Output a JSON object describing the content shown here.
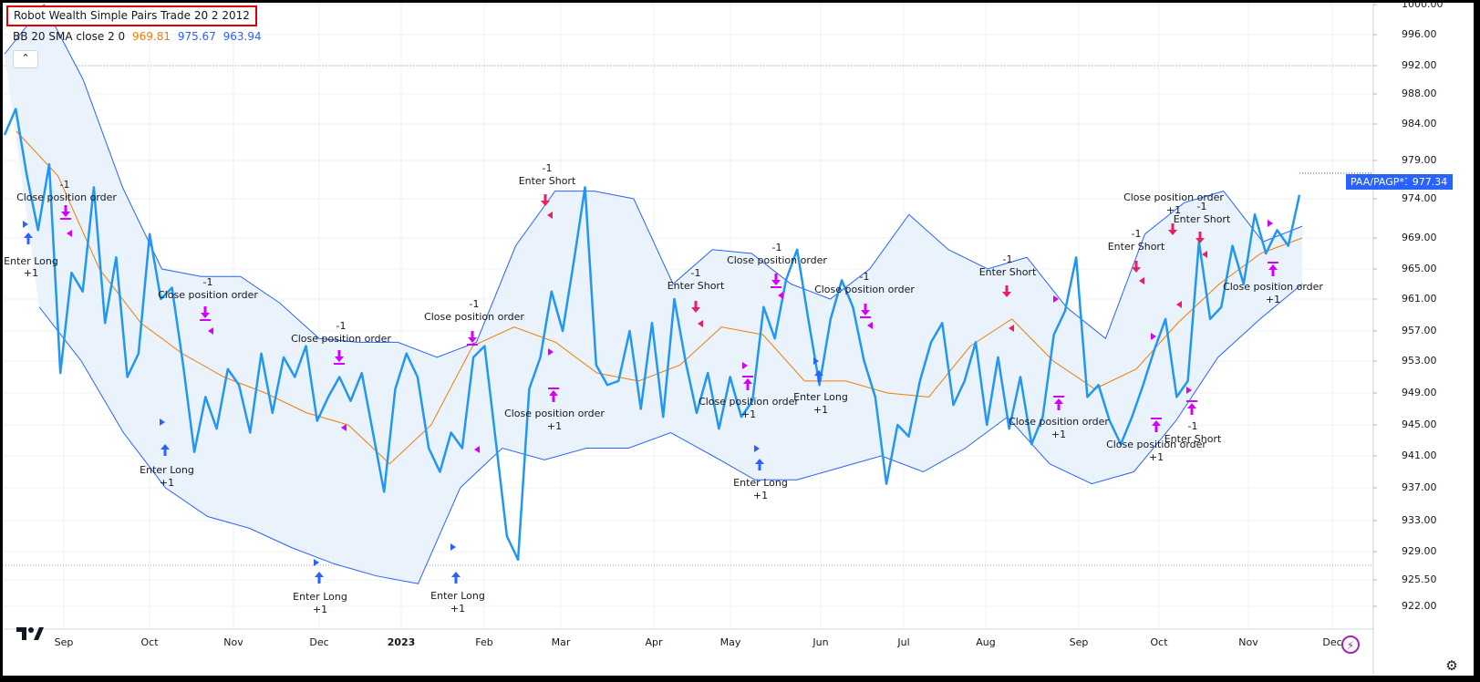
{
  "title": "Robot Wealth Simple Pairs Trade 20 2 2012",
  "indicator": {
    "label": "BB 20 SMA close 2 0",
    "basis": "969.81",
    "upper": "975.67",
    "lower": "963.94",
    "basis_color": "#f57c00",
    "upper_color": "#2962ff",
    "lower_color": "#2962ff"
  },
  "collapse_icon": "chevron-up-icon",
  "symbol_label": "PAA/PAGP*1000",
  "last_price": "977.34",
  "colors": {
    "price_line": "#2196f3",
    "band": "#2962ff",
    "band_fill": "#eaf3fb",
    "basis": "#f57c00",
    "entry": "#2962ff",
    "exit_short": "#e91e63",
    "close_order": "#d500f9"
  },
  "chart_data": {
    "type": "line",
    "xlabels": [
      "Sep",
      "Oct",
      "Nov",
      "Dec",
      "2023",
      "Feb",
      "Mar",
      "Apr",
      "May",
      "Jun",
      "Jul",
      "Aug",
      "Sep",
      "Oct",
      "Nov",
      "Dec"
    ],
    "yticks": [
      "1000.00",
      "996.00",
      "992.00",
      "988.00",
      "984.00",
      "979.00",
      "974.00",
      "969.00",
      "965.00",
      "961.00",
      "957.00",
      "953.00",
      "949.00",
      "945.00",
      "941.00",
      "937.00",
      "933.00",
      "929.00",
      "925.50",
      "922.00"
    ],
    "ylim": [
      920,
      1001
    ],
    "grid": true,
    "series": [
      {
        "name": "PAA/PAGP*1000",
        "values": [
          982.5,
          986.0,
          977.0,
          970.0,
          978.5,
          951.5,
          964.5,
          962.0,
          975.5,
          958.0,
          966.5,
          951.0,
          954.0,
          969.5,
          961.0,
          962.5,
          952.5,
          941.5,
          948.5,
          944.5,
          952.0,
          950.0,
          944.0,
          954.0,
          946.5,
          953.5,
          951.0,
          955.0,
          945.5,
          948.5,
          951.0,
          948.0,
          951.5,
          944.0,
          936.5,
          949.5,
          954.0,
          951.0,
          942.0,
          939.0,
          944.0,
          942.0,
          953.5,
          955.0,
          943.0,
          931.0,
          928.0,
          949.5,
          953.5,
          962.0,
          957.0,
          966.0,
          975.5,
          952.5,
          950.0,
          950.5,
          957.0,
          947.0,
          958.0,
          946.0,
          961.0,
          953.0,
          946.5,
          951.5,
          944.5,
          951.0,
          946.0,
          948.0,
          960.0,
          956.0,
          963.5,
          967.5,
          958.5,
          950.0,
          958.5,
          963.5,
          960.0,
          953.0,
          948.5,
          937.5,
          945.0,
          943.5,
          950.5,
          955.5,
          958.0,
          947.5,
          950.5,
          955.5,
          945.0,
          953.5,
          944.5,
          951.0,
          942.5,
          946.0,
          956.5,
          959.5,
          966.5,
          948.5,
          950.0,
          945.5,
          942.5,
          946.0,
          950.0,
          954.5,
          958.5,
          948.5,
          950.5,
          968.5,
          958.5,
          960.0,
          968.0,
          963.0,
          972.0,
          967.0,
          970.0,
          968.0,
          974.5
        ]
      },
      {
        "name": "BB Upper",
        "values": [
          993.5,
          1000.0,
          990.0,
          975.5,
          965.0,
          964.0,
          964.0,
          960.5,
          956.0,
          955.5,
          955.5,
          953.5,
          955.5,
          968.0,
          975.0,
          975.0,
          974.0,
          963.0,
          967.5,
          967.0,
          963.0,
          961.0,
          965.0,
          972.0,
          967.5,
          965.0,
          966.5,
          960.0,
          956.0,
          969.5,
          973.5,
          975.0,
          968.5,
          970.5
        ]
      },
      {
        "name": "BB Basis",
        "values": [
          983.0,
          977.0,
          965.0,
          958.0,
          954.0,
          951.0,
          949.0,
          946.5,
          945.0,
          940.0,
          945.0,
          955.0,
          957.5,
          955.5,
          951.5,
          950.5,
          952.5,
          957.5,
          956.5,
          950.5,
          950.5,
          949.0,
          948.5,
          955.0,
          958.5,
          953.0,
          949.5,
          952.0,
          958.0,
          963.0,
          967.0,
          969.0
        ]
      },
      {
        "name": "BB Lower",
        "values": [
          960.0,
          953.0,
          944.0,
          937.0,
          933.5,
          932.0,
          929.5,
          927.5,
          926.0,
          925.0,
          937.0,
          942.0,
          940.5,
          942.0,
          942.0,
          944.0,
          941.0,
          938.0,
          938.0,
          939.5,
          941.0,
          939.0,
          942.0,
          946.0,
          940.0,
          937.5,
          939.0,
          945.5,
          953.5,
          958.5,
          963.0
        ]
      }
    ],
    "annotations": [
      "Enter Long",
      "+1",
      "-1",
      "Close position order",
      "-1",
      "Close position order",
      "-1",
      "Close position order",
      "Enter Long",
      "+1",
      "Enter Long",
      "+1",
      "-1",
      "Close position order",
      "Enter Long",
      "+1",
      "-1",
      "Enter Short",
      "Close position order",
      "+1",
      "-1",
      "Enter Short",
      "-1",
      "Close position order",
      "Close position order",
      "+1",
      "Enter Long",
      "+1",
      "-1",
      "Close position order",
      "Enter Long",
      "+1",
      "-1",
      "Enter Short",
      "Close position order",
      "+1",
      "-1",
      "Enter Short",
      "Close position order",
      "+1",
      "-1",
      "Enter Short",
      "-1",
      "Enter Short",
      "Close position order",
      "+1",
      "Close position order",
      "+1"
    ]
  }
}
